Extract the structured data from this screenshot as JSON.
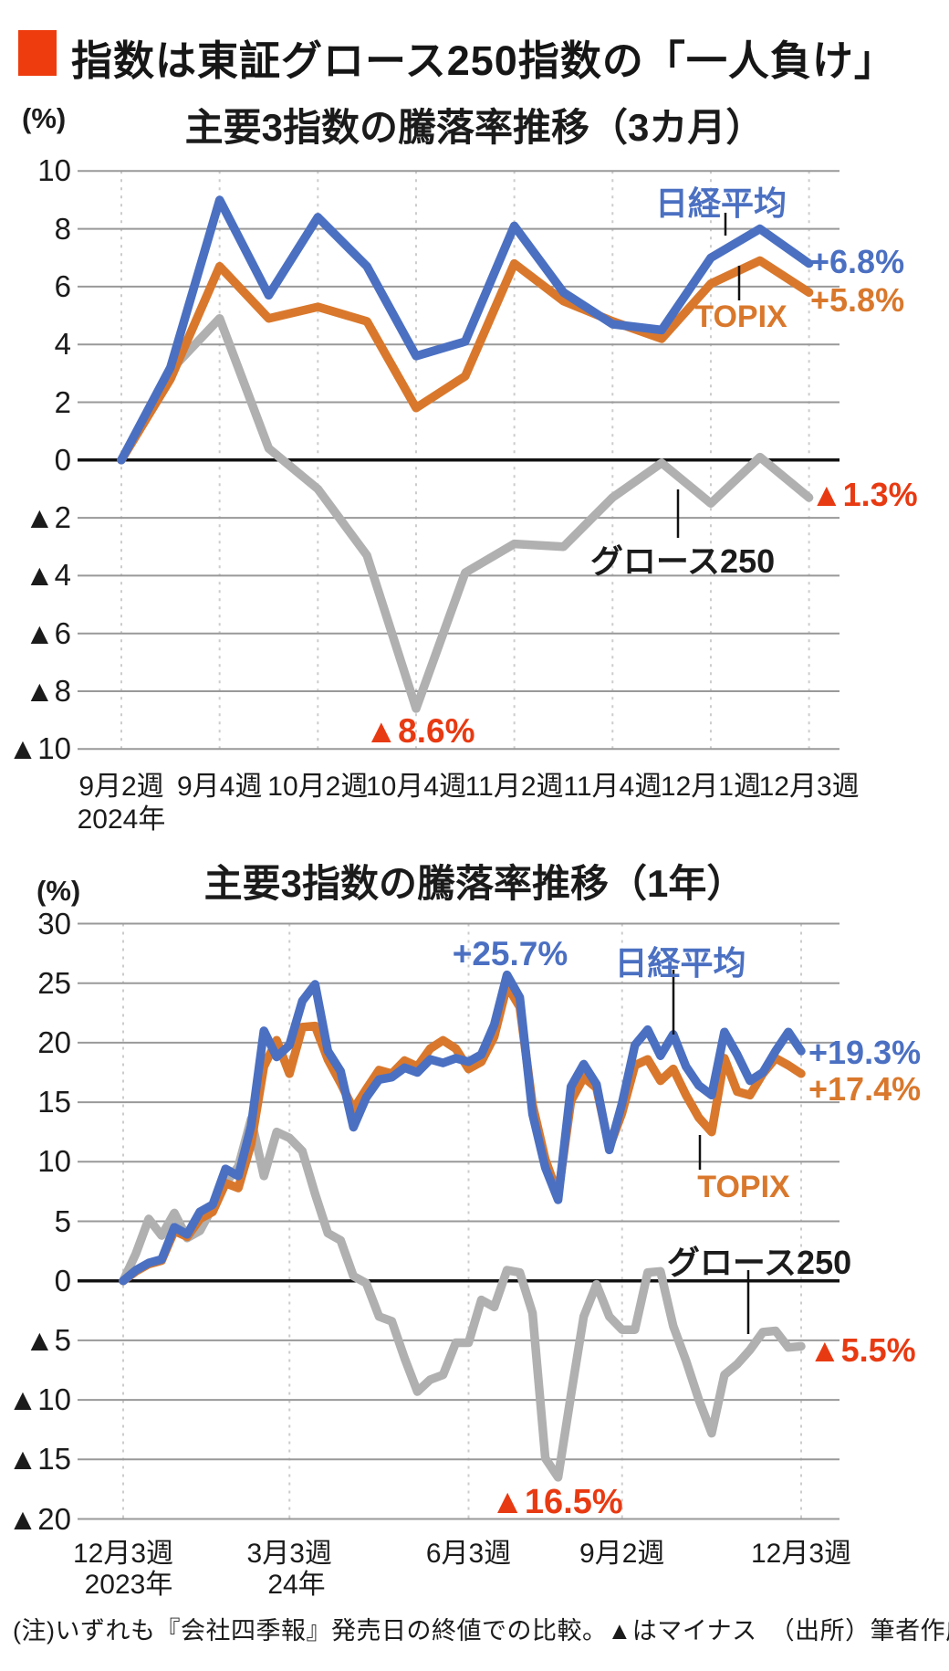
{
  "header": {
    "title": "指数は東証グロース250指数の「一人負け」"
  },
  "accent_colors": {
    "header_square": "#ee3c0e",
    "nikkei_blue": "#4b70c2",
    "topix_orange": "#d9782c",
    "growth_gray": "#b0b0b0",
    "negative_red": "#e83a12"
  },
  "chart_data": [
    {
      "type": "line",
      "title": "主要3指数の騰落率推移（3カ月）",
      "unit": "(%)",
      "ylim": [
        -10,
        10
      ],
      "grid": true,
      "y_tick_labels": [
        "10",
        "8",
        "6",
        "4",
        "2",
        "0",
        "▲2",
        "▲4",
        "▲6",
        "▲8",
        "▲10"
      ],
      "x_tick_labels": [
        "9月2週",
        "9月4週",
        "10月2週",
        "10月4週",
        "11月2週",
        "11月4週",
        "12月1週",
        "12月3週"
      ],
      "year_label": "2024年",
      "series": [
        {
          "name": "日経平均",
          "color": "#4b70c2",
          "values": [
            0,
            3.2,
            9.0,
            5.7,
            8.4,
            6.7,
            3.6,
            4.1,
            8.1,
            5.8,
            4.7,
            4.5,
            7.0,
            8.0,
            6.8
          ]
        },
        {
          "name": "TOPIX",
          "color": "#d9782c",
          "values": [
            0,
            2.8,
            6.7,
            4.9,
            5.3,
            4.8,
            1.8,
            2.9,
            6.8,
            5.5,
            4.8,
            4.2,
            6.1,
            6.9,
            5.8
          ]
        },
        {
          "name": "グロース250",
          "color": "#b0b0b0",
          "values": [
            0,
            3.1,
            4.9,
            0.4,
            -1.0,
            -3.3,
            -8.6,
            -3.9,
            -2.9,
            -3.0,
            -1.3,
            -0.1,
            -1.5,
            0.1,
            -1.3
          ]
        }
      ],
      "annotations": {
        "nikkei_label": "日経平均",
        "nikkei_end": "+6.8%",
        "topix_end": "+5.8%",
        "topix_label": "TOPIX",
        "growth_end": "▲1.3%",
        "growth_label": "グロース250",
        "growth_min": "▲8.6%"
      }
    },
    {
      "type": "line",
      "title": "主要3指数の騰落率推移（1年）",
      "unit": "(%)",
      "ylim": [
        -20,
        30
      ],
      "grid": true,
      "y_tick_labels": [
        "30",
        "25",
        "20",
        "15",
        "10",
        "5",
        "0",
        "▲5",
        "▲10",
        "▲15",
        "▲20"
      ],
      "x_tick_labels": [
        "12月3週",
        "3月3週",
        "6月3週",
        "9月2週",
        "12月3週"
      ],
      "year_label": "2023年",
      "year_label2": "24年",
      "series": [
        {
          "name": "日経平均",
          "color": "#4b70c2",
          "values": [
            0,
            0.9,
            1.5,
            1.8,
            4.5,
            3.9,
            5.8,
            6.4,
            9.4,
            8.8,
            13.0,
            21.0,
            18.8,
            19.8,
            23.5,
            24.9,
            19.3,
            17.6,
            12.9,
            15.4,
            16.9,
            17.1,
            17.9,
            17.5,
            18.6,
            18.3,
            18.7,
            18.4,
            19.0,
            21.5,
            25.7,
            23.8,
            14.0,
            9.5,
            6.8,
            16.3,
            18.2,
            16.5,
            11.0,
            14.9,
            19.8,
            21.1,
            18.9,
            20.7,
            18.0,
            16.4,
            15.6,
            20.9,
            19.0,
            16.8,
            17.5,
            19.3,
            20.9,
            19.3
          ]
        },
        {
          "name": "TOPIX",
          "color": "#d9782c",
          "values": [
            0,
            0.8,
            1.4,
            1.7,
            4.2,
            3.7,
            5.2,
            5.8,
            8.2,
            7.8,
            11.5,
            18.0,
            20.2,
            17.4,
            21.3,
            21.4,
            18.6,
            16.6,
            14.4,
            16.1,
            17.7,
            17.4,
            18.5,
            18.0,
            19.5,
            20.2,
            19.5,
            17.8,
            18.4,
            20.5,
            24.8,
            23.0,
            14.8,
            10.2,
            7.2,
            15.1,
            17.1,
            16.2,
            11.2,
            14.1,
            18.1,
            18.6,
            16.8,
            17.8,
            15.6,
            13.7,
            12.5,
            18.7,
            15.9,
            15.6,
            17.4,
            18.7,
            18.1,
            17.4
          ]
        },
        {
          "name": "グロース250",
          "color": "#b0b0b0",
          "values": [
            0,
            2.3,
            5.2,
            3.8,
            5.7,
            3.6,
            4.2,
            6.2,
            8.2,
            9.6,
            13.6,
            8.8,
            12.5,
            12.0,
            10.9,
            7.3,
            4.0,
            3.4,
            0.4,
            -0.2,
            -3.0,
            -3.4,
            -6.5,
            -9.3,
            -8.3,
            -7.9,
            -5.2,
            -5.2,
            -1.6,
            -2.2,
            0.9,
            0.7,
            -2.7,
            -14.9,
            -16.5,
            -9.6,
            -3.0,
            -0.3,
            -3.0,
            -4.1,
            -4.1,
            0.7,
            0.8,
            -3.8,
            -6.7,
            -10.0,
            -12.8,
            -7.9,
            -7.0,
            -5.8,
            -4.3,
            -4.2,
            -5.6,
            -5.5
          ]
        }
      ],
      "annotations": {
        "peak": "+25.7%",
        "nikkei_label": "日経平均",
        "nikkei_end": "+19.3%",
        "topix_end": "+17.4%",
        "topix_label": "TOPIX",
        "growth_label": "グロース250",
        "growth_end": "▲5.5%",
        "growth_min": "▲16.5%"
      }
    }
  ],
  "footnote": "(注)いずれも『会社四季報』発売日の終値での比較。▲はマイナス　（出所）筆者作成"
}
